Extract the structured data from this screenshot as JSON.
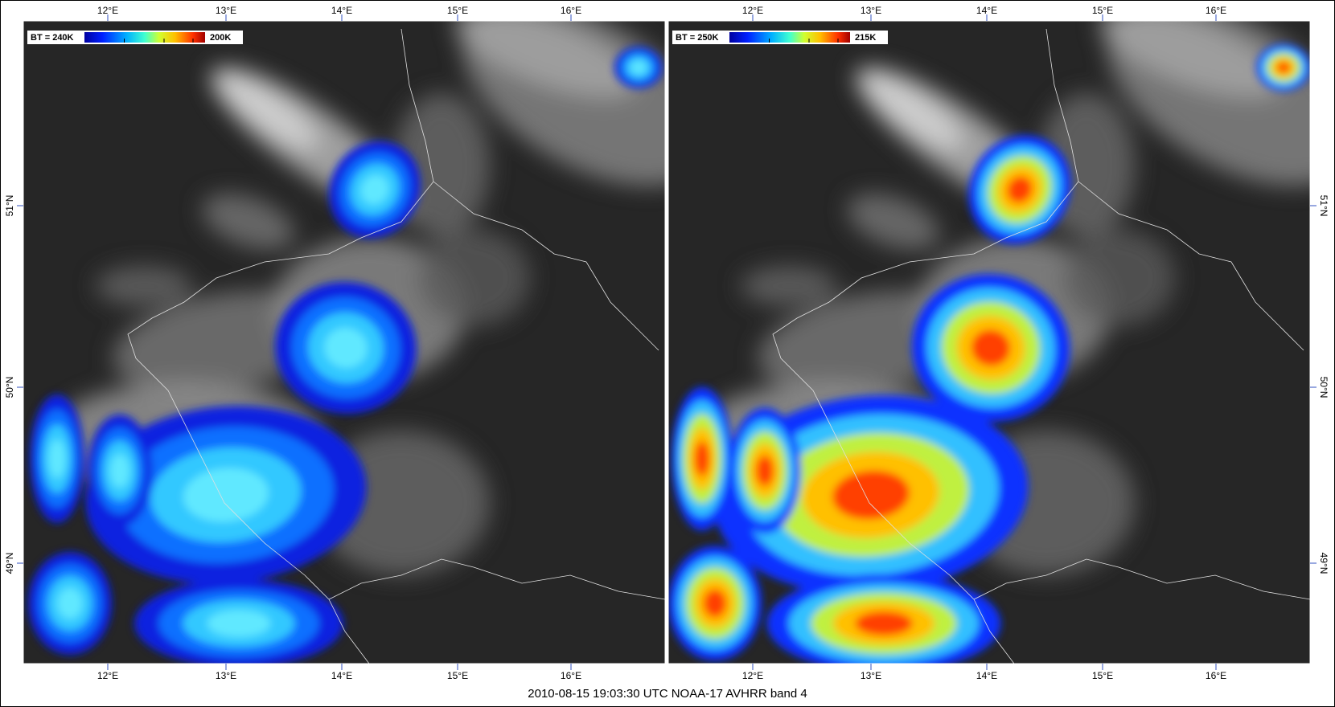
{
  "panels": [
    {
      "legend": {
        "min": "BT = 240K",
        "max": "200K"
      }
    },
    {
      "legend": {
        "min": "BT = 250K",
        "max": "215K"
      }
    }
  ],
  "lon_labels": [
    "12°E",
    "13°E",
    "14°E",
    "15°E",
    "16°E"
  ],
  "lat_labels": [
    "51°N",
    "50°N",
    "49°N"
  ],
  "caption": "2010-08-15  19:03:30 UTC   NOAA-17  AVHRR band 4"
}
